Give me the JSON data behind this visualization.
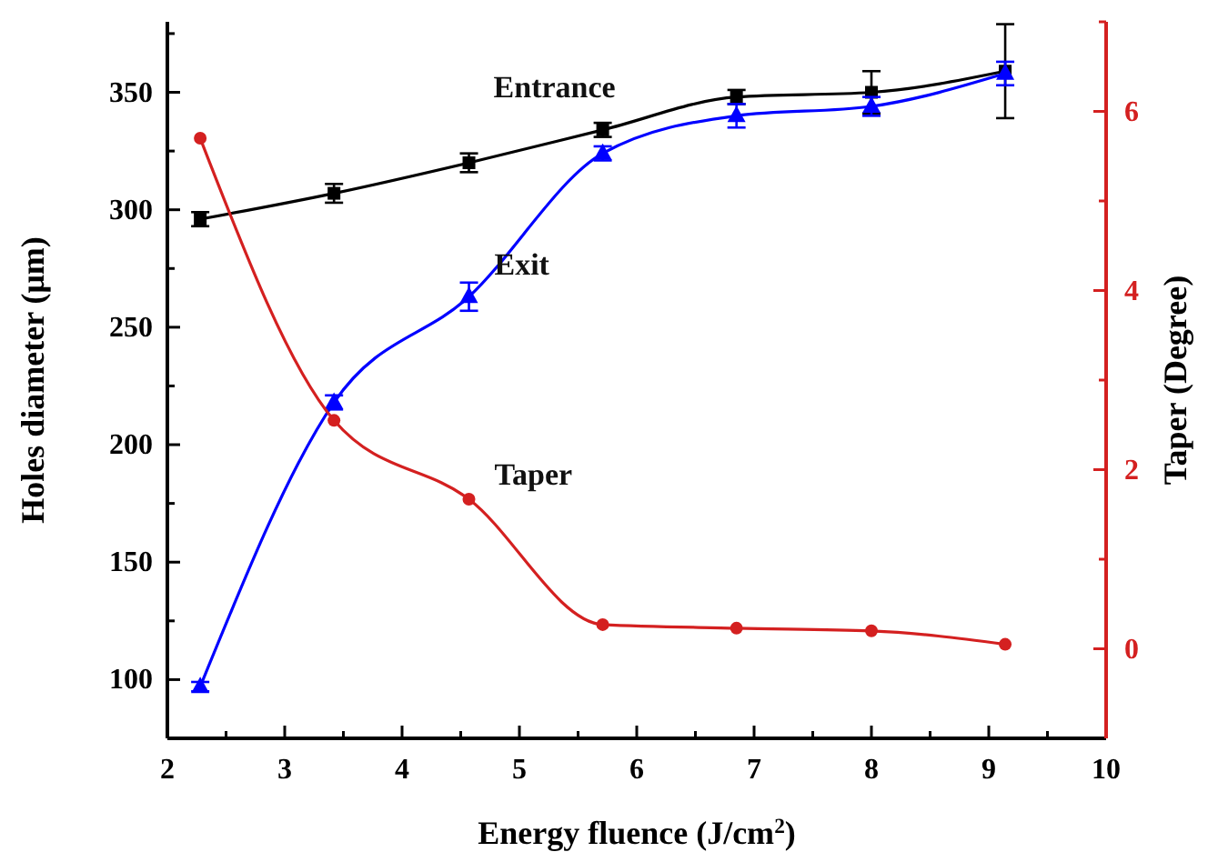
{
  "chart_data": {
    "type": "line",
    "xlabel": "Energy fluence (J/cm$^{2}$)",
    "ylabel": "Holes diameter (μm)",
    "y2label": "Taper (Degree)",
    "x": [
      2.28,
      3.42,
      4.57,
      5.71,
      6.85,
      8.0,
      9.14
    ],
    "xlim": [
      2,
      10
    ],
    "xticks": [
      2,
      {
        "value": 2.5,
        "label": null
      },
      3,
      {
        "value": 3.5,
        "label": null
      },
      4,
      {
        "value": 4.5,
        "label": null
      },
      5,
      {
        "value": 5.5,
        "label": null
      },
      6,
      {
        "value": 6.5,
        "label": null
      },
      7,
      {
        "value": 7.5,
        "label": null
      },
      8,
      {
        "value": 8.5,
        "label": null
      },
      9,
      {
        "value": 9.5,
        "label": null
      },
      10
    ],
    "ylim": [
      75,
      380
    ],
    "yticks": [
      100,
      {
        "value": 125,
        "label": null
      },
      150,
      {
        "value": 175,
        "label": null
      },
      200,
      {
        "value": 225,
        "label": null
      },
      250,
      {
        "value": 275,
        "label": null
      },
      300,
      {
        "value": 325,
        "label": null
      },
      350,
      {
        "value": 375,
        "label": null
      }
    ],
    "y2lim": [
      -1,
      7
    ],
    "y2ticks": [
      0,
      {
        "value": 1,
        "label": null
      },
      2,
      {
        "value": 3,
        "label": null
      },
      4,
      {
        "value": 5,
        "label": null
      },
      6,
      {
        "value": 7,
        "label": null
      }
    ],
    "grid": false,
    "legend": false,
    "line_style": "solid",
    "series": [
      {
        "name": "Entrance",
        "color": "#000000",
        "marker": "square",
        "values": [
          296,
          307,
          320,
          334,
          348,
          350,
          359
        ],
        "errors": [
          3,
          4,
          4,
          3,
          3,
          9,
          20
        ]
      },
      {
        "name": "Exit",
        "color": "#0000ff",
        "marker": "triangle",
        "values": [
          97,
          218,
          263,
          324,
          340,
          344,
          358
        ],
        "errors": [
          2,
          3,
          6,
          3,
          5,
          4,
          5
        ]
      },
      {
        "name": "Taper",
        "color": "#d42020",
        "marker": "circle",
        "axis": "y2",
        "values": [
          5.7,
          2.55,
          1.67,
          0.27,
          0.23,
          0.2,
          0.05
        ]
      }
    ]
  }
}
